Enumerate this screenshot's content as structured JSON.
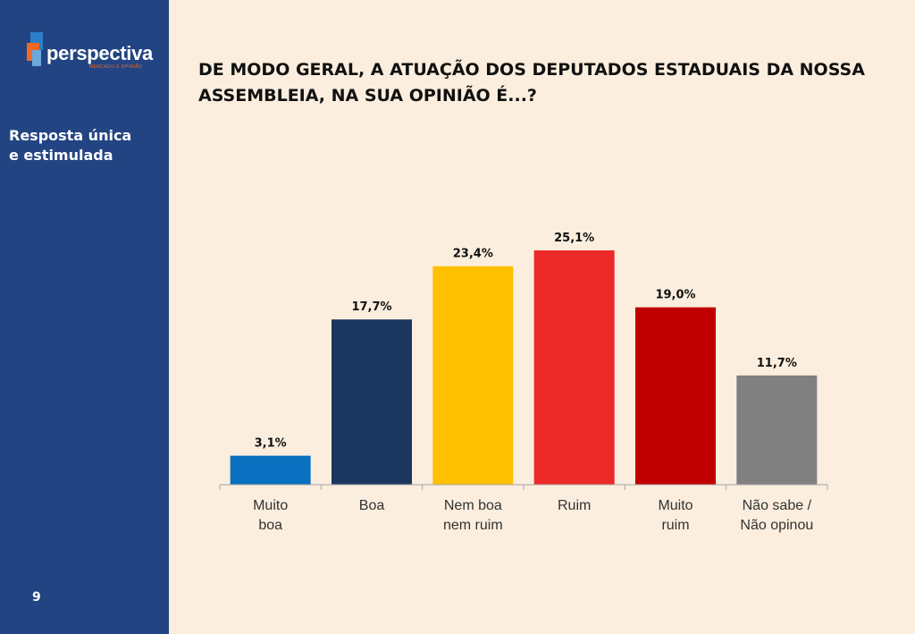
{
  "brand": {
    "name": "perspectiva",
    "tagline": "MERCADO E OPINIÃO",
    "colors": {
      "sidebar": "#234482",
      "logo_orange": "#f26a21",
      "logo_blue": "#2e7fc9"
    }
  },
  "sidebar": {
    "caption": "Resposta única\ne estimulada",
    "page_number": "9"
  },
  "slide": {
    "background": "#fbeede",
    "title": "DE MODO GERAL, A ATUAÇÃO DOS DEPUTADOS ESTADUAIS DA NOSSA ASSEMBLEIA, NA SUA OPINIÃO É...?"
  },
  "chart_data": {
    "type": "bar",
    "categories": [
      [
        "Muito",
        "boa"
      ],
      [
        "Boa"
      ],
      [
        "Nem boa",
        "nem ruim"
      ],
      [
        "Ruim"
      ],
      [
        "Muito",
        "ruim"
      ],
      [
        "Não sabe /",
        "Não opinou"
      ]
    ],
    "values": [
      3.1,
      17.7,
      23.4,
      25.1,
      19.0,
      11.7
    ],
    "value_labels": [
      "3,1%",
      "17,7%",
      "23,4%",
      "25,1%",
      "19,0%",
      "11,7%"
    ],
    "colors": [
      "#0a70c0",
      "#1b375f",
      "#ffc000",
      "#ec2929",
      "#c00000",
      "#808080"
    ],
    "ylim": [
      0,
      25.1
    ],
    "grid": false,
    "legend": "none"
  }
}
